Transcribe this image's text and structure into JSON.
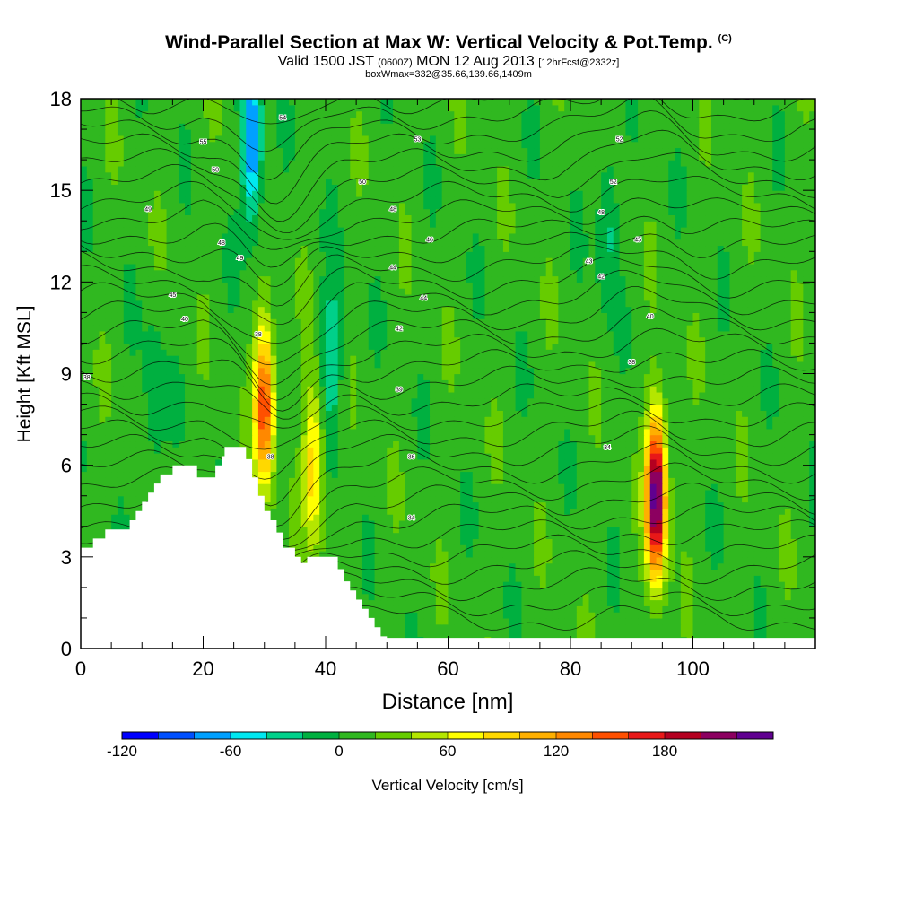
{
  "header": {
    "title": "Wind-Parallel Section at Max W: Vertical Velocity & Pot.Temp.",
    "copyright": "(C)",
    "valid_prefix": "Valid 1500 JST",
    "valid_utc": "(0600Z)",
    "valid_date": "MON 12 Aug 2013",
    "forecast": "[12hrFcst@2332z]",
    "box_info": "boxWmax=332@35.66,139.66,1409m"
  },
  "chart_data": {
    "type": "heatmap",
    "title": "Wind-Parallel Section at Max W: Vertical Velocity & Pot.Temp.",
    "xlabel": "Distance [nm]",
    "ylabel": "Height [Kft MSL]",
    "xlim": [
      0,
      120
    ],
    "ylim": [
      0,
      18
    ],
    "x_ticks": [
      0,
      20,
      40,
      60,
      80,
      100
    ],
    "y_ticks": [
      0,
      3,
      6,
      9,
      12,
      15,
      18
    ],
    "colorbar": {
      "label": "Vertical Velocity [cm/s]",
      "ticks": [
        -120,
        -60,
        0,
        60,
        120,
        180
      ],
      "levels": [
        -120,
        -100,
        -80,
        -60,
        -40,
        -20,
        0,
        20,
        40,
        60,
        80,
        100,
        120,
        140,
        160,
        180,
        200,
        220
      ],
      "colors": [
        "#0000ff",
        "#0050ff",
        "#00a0ff",
        "#00e8f0",
        "#00d08a",
        "#00b040",
        "#30b820",
        "#66cc00",
        "#b4e600",
        "#ffff00",
        "#ffd800",
        "#ffb000",
        "#ff8800",
        "#ff5000",
        "#e81818",
        "#b40020",
        "#8c0060",
        "#600090"
      ]
    },
    "background_level_cm_s": 10,
    "velocity_features": [
      {
        "x_nm": 30,
        "z_kft": 8.0,
        "peak_cm_s": 150
      },
      {
        "x_nm": 38,
        "z_kft": 6.0,
        "peak_cm_s": 90
      },
      {
        "x_nm": 28,
        "z_kft": 16.5,
        "peak_cm_s": -100
      },
      {
        "x_nm": 41,
        "z_kft": 9.5,
        "peak_cm_s": -50
      },
      {
        "x_nm": 94,
        "z_kft": 5.0,
        "peak_cm_s": 230
      },
      {
        "x_nm": 86,
        "z_kft": 14.0,
        "peak_cm_s": -40
      },
      {
        "x_nm": 12,
        "z_kft": 8.0,
        "peak_cm_s": -30
      }
    ],
    "terrain_kft": [
      [
        0,
        3.3
      ],
      [
        2,
        3.6
      ],
      [
        4,
        3.9
      ],
      [
        8,
        4.2
      ],
      [
        9,
        4.5
      ],
      [
        10,
        4.8
      ],
      [
        11,
        5.1
      ],
      [
        12,
        5.4
      ],
      [
        13,
        5.7
      ],
      [
        15,
        6.0
      ],
      [
        17,
        6.0
      ],
      [
        19,
        5.6
      ],
      [
        21,
        5.6
      ],
      [
        22,
        6.0
      ],
      [
        23,
        6.3
      ],
      [
        23.5,
        6.6
      ],
      [
        26,
        6.6
      ],
      [
        27,
        6.2
      ],
      [
        28,
        5.6
      ],
      [
        29,
        5.0
      ],
      [
        30,
        4.5
      ],
      [
        31,
        4.2
      ],
      [
        32,
        3.8
      ],
      [
        33,
        3.3
      ],
      [
        35,
        3.0
      ],
      [
        36,
        2.8
      ],
      [
        37,
        3.0
      ],
      [
        41,
        3.0
      ],
      [
        42,
        2.6
      ],
      [
        43,
        2.2
      ],
      [
        44,
        1.9
      ],
      [
        45,
        1.6
      ],
      [
        46,
        1.3
      ],
      [
        47,
        1.0
      ],
      [
        48,
        0.7
      ],
      [
        49,
        0.4
      ],
      [
        50,
        0.35
      ]
    ],
    "theta_labels": [
      {
        "x": 20,
        "z": 16.6,
        "v": "55"
      },
      {
        "x": 33,
        "z": 17.4,
        "v": "54"
      },
      {
        "x": 55,
        "z": 16.7,
        "v": "53"
      },
      {
        "x": 22,
        "z": 15.7,
        "v": "50"
      },
      {
        "x": 46,
        "z": 15.3,
        "v": "50"
      },
      {
        "x": 11,
        "z": 14.4,
        "v": "49"
      },
      {
        "x": 51,
        "z": 14.4,
        "v": "48"
      },
      {
        "x": 23,
        "z": 13.3,
        "v": "48"
      },
      {
        "x": 57,
        "z": 13.4,
        "v": "46"
      },
      {
        "x": 26,
        "z": 12.8,
        "v": "49"
      },
      {
        "x": 51,
        "z": 12.5,
        "v": "44"
      },
      {
        "x": 15,
        "z": 11.6,
        "v": "45"
      },
      {
        "x": 56,
        "z": 11.5,
        "v": "44"
      },
      {
        "x": 17,
        "z": 10.8,
        "v": "40"
      },
      {
        "x": 52,
        "z": 10.5,
        "v": "42"
      },
      {
        "x": 29,
        "z": 10.3,
        "v": "38"
      },
      {
        "x": 1,
        "z": 8.9,
        "v": "38"
      },
      {
        "x": 52,
        "z": 8.5,
        "v": "39"
      },
      {
        "x": 31,
        "z": 6.3,
        "v": "38"
      },
      {
        "x": 54,
        "z": 6.3,
        "v": "36"
      },
      {
        "x": 54,
        "z": 4.3,
        "v": "34"
      },
      {
        "x": 86,
        "z": 6.6,
        "v": "34"
      },
      {
        "x": 90,
        "z": 9.4,
        "v": "38"
      },
      {
        "x": 93,
        "z": 10.9,
        "v": "40"
      },
      {
        "x": 85,
        "z": 12.2,
        "v": "42"
      },
      {
        "x": 83,
        "z": 12.7,
        "v": "43"
      },
      {
        "x": 91,
        "z": 13.4,
        "v": "45"
      },
      {
        "x": 85,
        "z": 14.3,
        "v": "48"
      },
      {
        "x": 87,
        "z": 15.3,
        "v": "52"
      },
      {
        "x": 88,
        "z": 16.7,
        "v": "52"
      }
    ]
  }
}
